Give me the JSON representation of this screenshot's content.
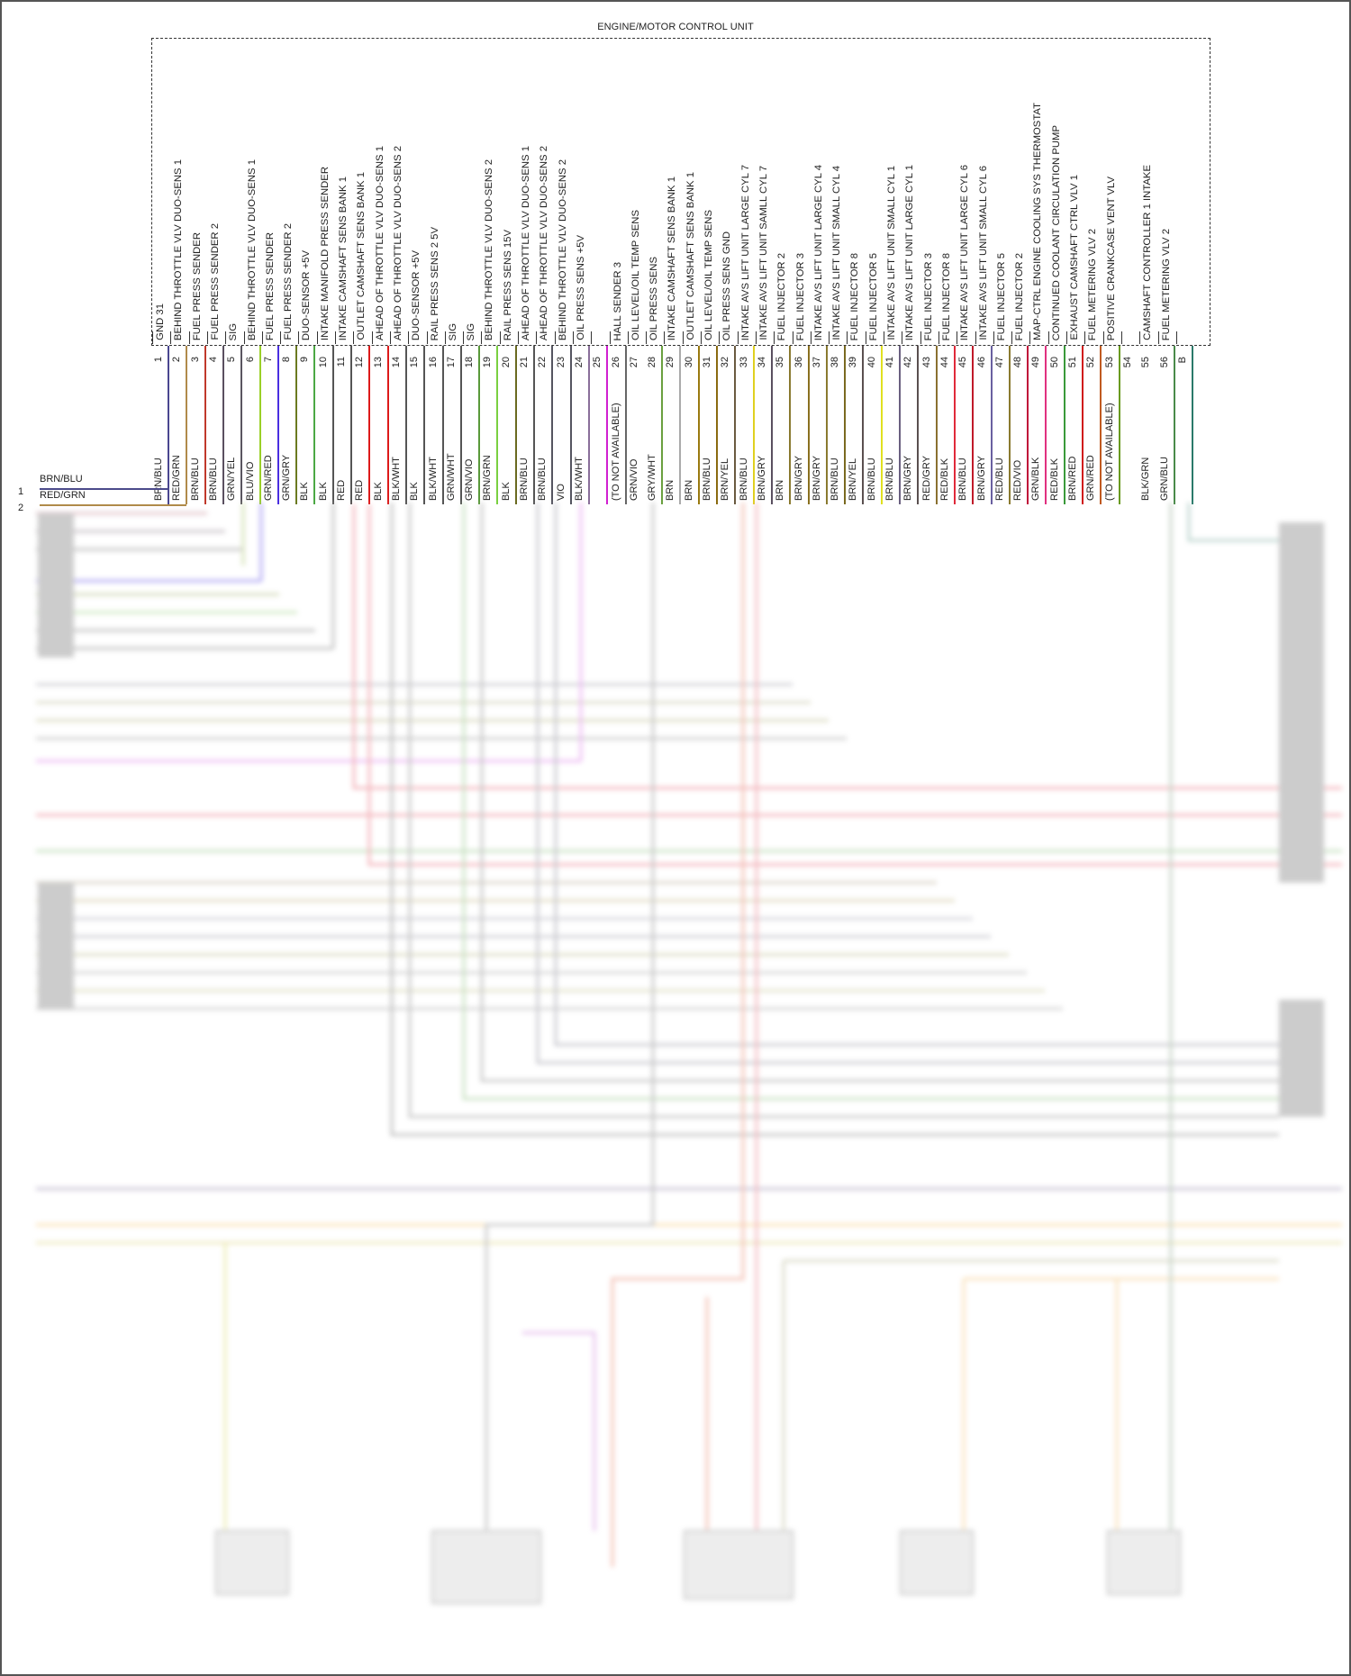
{
  "diagram": {
    "title": "ENGINE/MOTOR CONTROL UNIT",
    "left_inputs": [
      {
        "num": "1",
        "color_label": "BRN/BLU",
        "color": "#4b4a8a"
      },
      {
        "num": "2",
        "color_label": "RED/GRN",
        "color": "#b08a4a"
      }
    ],
    "pins": [
      {
        "num": "1",
        "function": "GND 31",
        "wire": "BRN/BLU",
        "color": "#4a4790"
      },
      {
        "num": "2",
        "function": "BEHIND THROTTLE VLV DUO-SENS 1",
        "wire": "RED/GRN",
        "color": "#c0883a"
      },
      {
        "num": "3",
        "function": "FUEL PRESS SENDER",
        "wire": "BRN/BLU",
        "color": "#c0392b"
      },
      {
        "num": "4",
        "function": "FUEL PRESS SENDER 2",
        "wire": "BRN/BLU",
        "color": "#5a5060"
      },
      {
        "num": "5",
        "function": "SIG",
        "wire": "GRN/YEL",
        "color": "#5a5560"
      },
      {
        "num": "6",
        "function": "BEHIND THROTTLE VLV DUO-SENS 1",
        "wire": "BLU/VIO",
        "color": "#9ad028"
      },
      {
        "num": "7",
        "function": "FUEL PRESS SENDER",
        "wire": "GRN/RED",
        "color": "#4a2ee0"
      },
      {
        "num": "8",
        "function": "FUEL PRESS SENDER 2",
        "wire": "GRN/GRY",
        "color": "#6b7a20"
      },
      {
        "num": "9",
        "function": "DUO-SENSOR +5V",
        "wire": "BLK",
        "color": "#4ca844"
      },
      {
        "num": "10",
        "function": "INTAKE MANIFOLD PRESS SENDER",
        "wire": "BLK",
        "color": "#555555"
      },
      {
        "num": "11",
        "function": "INTAKE CAMSHAFT SENS BANK 1",
        "wire": "RED",
        "color": "#555555"
      },
      {
        "num": "12",
        "function": "OUTLET CAMSHAFT SENS BANK 1",
        "wire": "RED",
        "color": "#dd1a1a"
      },
      {
        "num": "13",
        "function": "AHEAD OF THROTTLE VLV DUO-SENS 1",
        "wire": "BLK",
        "color": "#dd1a1a"
      },
      {
        "num": "14",
        "function": "AHEAD OF THROTTLE VLV DUO-SENS 2",
        "wire": "BLK/WHT",
        "color": "#555555"
      },
      {
        "num": "15",
        "function": "DUO-SENSOR +5V",
        "wire": "BLK",
        "color": "#555555"
      },
      {
        "num": "16",
        "function": "RAIL PRESS SENS 2 5V",
        "wire": "BLK/WHT",
        "color": "#555555"
      },
      {
        "num": "17",
        "function": "SIG",
        "wire": "GRN/WHT",
        "color": "#555555"
      },
      {
        "num": "18",
        "function": "SIG",
        "wire": "GRN/VIO",
        "color": "#5a9a3a"
      },
      {
        "num": "19",
        "function": "BEHIND THROTTLE VLV DUO-SENS 2",
        "wire": "BRN/GRN",
        "color": "#7ad040"
      },
      {
        "num": "20",
        "function": "RAIL PRESS SENS 15V",
        "wire": "BLK",
        "color": "#6a6a20"
      },
      {
        "num": "21",
        "function": "AHEAD OF THROTTLE VLV DUO-SENS 1",
        "wire": "BRN/BLU",
        "color": "#555555"
      },
      {
        "num": "22",
        "function": "AHEAD OF THROTTLE VLV DUO-SENS 2",
        "wire": "BRN/BLU",
        "color": "#555560"
      },
      {
        "num": "23",
        "function": "BEHIND THROTTLE VLV DUO-SENS 2",
        "wire": "VIO",
        "color": "#555560"
      },
      {
        "num": "24",
        "function": "OIL PRESS SENS +5V",
        "wire": "BLK/WHT",
        "color": "#8a6f9a"
      },
      {
        "num": "25",
        "function": "",
        "wire": "",
        "color": "#d020d0"
      },
      {
        "num": "26",
        "function": "HALL SENDER 3",
        "wire": "(TO NOT AVAILABLE)",
        "color": "#666666"
      },
      {
        "num": "27",
        "function": "OIL LEVEL/OIL TEMP SENS",
        "wire": "GRN/VIO",
        "color": ""
      },
      {
        "num": "28",
        "function": "OIL PRESS SENS",
        "wire": "GRY/WHT",
        "color": "#6aa040"
      },
      {
        "num": "29",
        "function": "INTAKE CAMSHAFT SENS BANK 1",
        "wire": "BRN",
        "color": "#aaaaaa"
      },
      {
        "num": "30",
        "function": "OUTLET CAMSHAFT SENS BANK 1",
        "wire": "BRN",
        "color": "#9a7a10"
      },
      {
        "num": "31",
        "function": "OIL LEVEL/OIL TEMP SENS",
        "wire": "BRN/BLU",
        "color": "#8a6a10"
      },
      {
        "num": "32",
        "function": "OIL PRESS SENS GND",
        "wire": "BRN/YEL",
        "color": "#6a5a40"
      },
      {
        "num": "33",
        "function": "INTAKE AVS LIFT UNIT LARGE CYL 7",
        "wire": "BRN/BLU",
        "color": "#e0d020"
      },
      {
        "num": "34",
        "function": "INTAKE AVS LIFT UNIT SAMLL CYL 7",
        "wire": "BRN/GRY",
        "color": "#5a5060"
      },
      {
        "num": "35",
        "function": "FUEL INJECTOR 2",
        "wire": "BRN",
        "color": "#8a7a30"
      },
      {
        "num": "36",
        "function": "FUEL INJECTOR 3",
        "wire": "BRN/GRY",
        "color": "#8a7020"
      },
      {
        "num": "37",
        "function": "INTAKE AVS LIFT UNIT LARGE CYL 4",
        "wire": "BRN/GRY",
        "color": "#8a7a30"
      },
      {
        "num": "38",
        "function": "INTAKE AVS LIFT UNIT SMALL CYL 4",
        "wire": "BRN/BLU",
        "color": "#7a6a20"
      },
      {
        "num": "39",
        "function": "FUEL INJECTOR 8",
        "wire": "BRN/YEL",
        "color": "#5a5050"
      },
      {
        "num": "40",
        "function": "FUEL INJECTOR 5",
        "wire": "BRN/BLU",
        "color": "#e0e020"
      },
      {
        "num": "41",
        "function": "INTAKE AVS LIFT UNIT SMALL CYL 1",
        "wire": "BRN/BLU",
        "color": "#6a6080"
      },
      {
        "num": "42",
        "function": "INTAKE AVS LIFT UNIT LARGE CYL 1",
        "wire": "BRN/GRY",
        "color": "#5a5050"
      },
      {
        "num": "43",
        "function": "FUEL INJECTOR 3",
        "wire": "RED/GRY",
        "color": "#8a7030"
      },
      {
        "num": "44",
        "function": "FUEL INJECTOR 8",
        "wire": "RED/BLK",
        "color": "#e02a3a"
      },
      {
        "num": "45",
        "function": "INTAKE AVS LIFT UNIT LARGE CYL 6",
        "wire": "BRN/BLU",
        "color": "#c01a2a"
      },
      {
        "num": "46",
        "function": "INTAKE AVS LIFT UNIT SMALL CYL 6",
        "wire": "BRN/GRY",
        "color": "#6a60a0"
      },
      {
        "num": "47",
        "function": "FUEL INJECTOR 5",
        "wire": "RED/BLU",
        "color": "#8a7a30"
      },
      {
        "num": "48",
        "function": "FUEL INJECTOR 2",
        "wire": "RED/VIO",
        "color": "#c0103a"
      },
      {
        "num": "49",
        "function": "MAP-CTRL ENGINE COOLING SYS THERMOSTAT",
        "wire": "GRN/BLK",
        "color": "#e03080"
      },
      {
        "num": "50",
        "function": "CONTINUED COOLANT CIRCULATION PUMP",
        "wire": "RED/BLK",
        "color": "#3a9a3a"
      },
      {
        "num": "51",
        "function": "EXHAUST CAMSHAFT CTRL VLV 1",
        "wire": "BRN/RED",
        "color": "#d01a1a"
      },
      {
        "num": "52",
        "function": "FUEL METERING VLV 2",
        "wire": "GRN/RED",
        "color": "#c05a20"
      },
      {
        "num": "53",
        "function": "POSITIVE CRANKCASE VENT VLV",
        "wire": "(TO NOT AVAILABLE)",
        "color": "#6a9a20"
      },
      {
        "num": "54",
        "function": "",
        "wire": "",
        "color": ""
      },
      {
        "num": "55",
        "function": "CAMSHAFT CONTROLLER 1 INTAKE",
        "wire": "BLK/GRN",
        "color": ""
      },
      {
        "num": "56",
        "function": "FUEL METERING VLV 2",
        "wire": "GRN/BLU",
        "color": "#4a8a4a"
      },
      {
        "num": "B",
        "function": "",
        "wire": "",
        "color": "#2a7a6a"
      }
    ]
  }
}
